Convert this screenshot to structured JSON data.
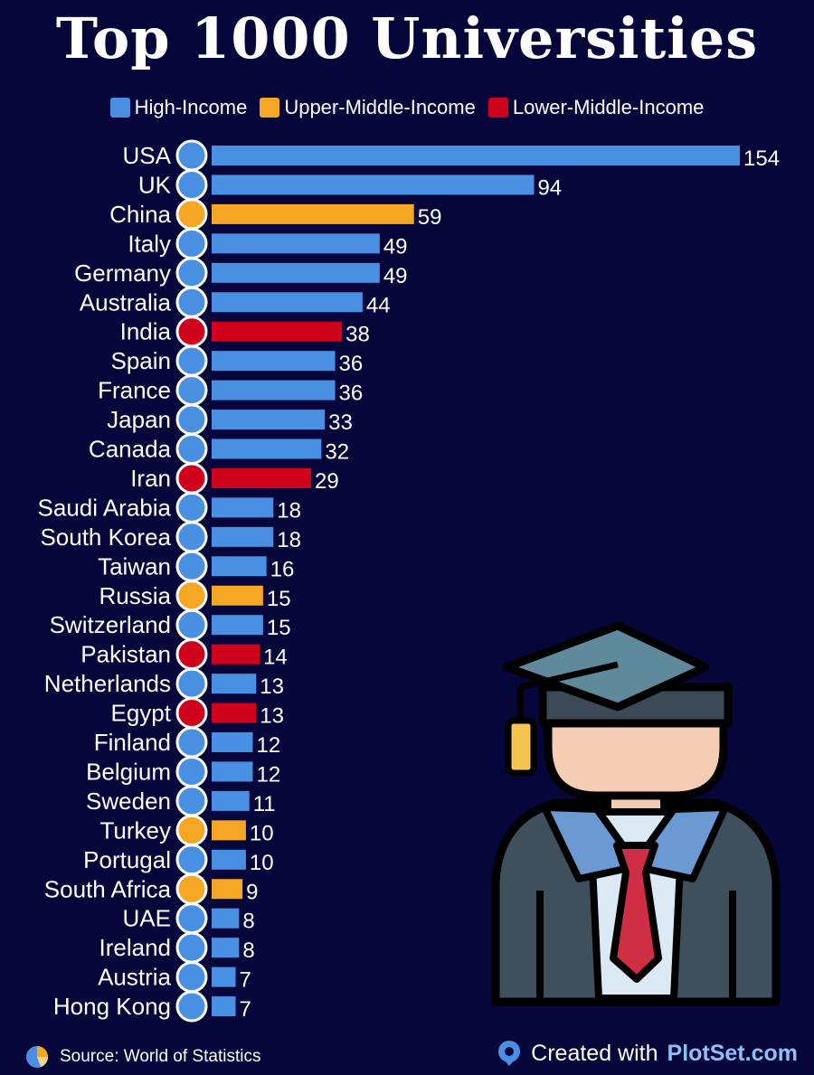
{
  "title": "Top 1000 Universities",
  "legend": [
    {
      "label": "High-Income",
      "color": "#4a90e2"
    },
    {
      "label": "Upper-Middle-Income",
      "color": "#f5a623"
    },
    {
      "label": "Lower-Middle-Income",
      "color": "#d0021b"
    }
  ],
  "chart_data": {
    "type": "bar",
    "orientation": "horizontal",
    "title": "Top 1000 Universities",
    "categories": [
      "USA",
      "UK",
      "China",
      "Italy",
      "Germany",
      "Australia",
      "India",
      "Spain",
      "France",
      "Japan",
      "Canada",
      "Iran",
      "Saudi Arabia",
      "South Korea",
      "Taiwan",
      "Russia",
      "Switzerland",
      "Pakistan",
      "Netherlands",
      "Egypt",
      "Finland",
      "Belgium",
      "Sweden",
      "Turkey",
      "Portugal",
      "South Africa",
      "UAE",
      "Ireland",
      "Austria",
      "Hong Kong"
    ],
    "values": [
      154,
      94,
      59,
      49,
      49,
      44,
      38,
      36,
      36,
      33,
      32,
      29,
      18,
      18,
      16,
      15,
      15,
      14,
      13,
      13,
      12,
      12,
      11,
      10,
      10,
      9,
      8,
      8,
      7,
      7
    ],
    "income_group": [
      "High-Income",
      "High-Income",
      "Upper-Middle-Income",
      "High-Income",
      "High-Income",
      "High-Income",
      "Lower-Middle-Income",
      "High-Income",
      "High-Income",
      "High-Income",
      "High-Income",
      "Lower-Middle-Income",
      "High-Income",
      "High-Income",
      "High-Income",
      "Upper-Middle-Income",
      "High-Income",
      "Lower-Middle-Income",
      "High-Income",
      "Lower-Middle-Income",
      "High-Income",
      "High-Income",
      "High-Income",
      "Upper-Middle-Income",
      "High-Income",
      "Upper-Middle-Income",
      "High-Income",
      "High-Income",
      "High-Income",
      "High-Income"
    ],
    "xlim": [
      0,
      154
    ],
    "grid": false,
    "legend_position": "top"
  },
  "footer": {
    "source": "Source: World of Statistics",
    "created_prefix": "Created with",
    "created_brand": "PlotSet.com"
  },
  "icons": {
    "source_icon": "pie-chart-icon",
    "brand_icon": "location-pin-icon",
    "illustration": "graduate-student-icon"
  }
}
